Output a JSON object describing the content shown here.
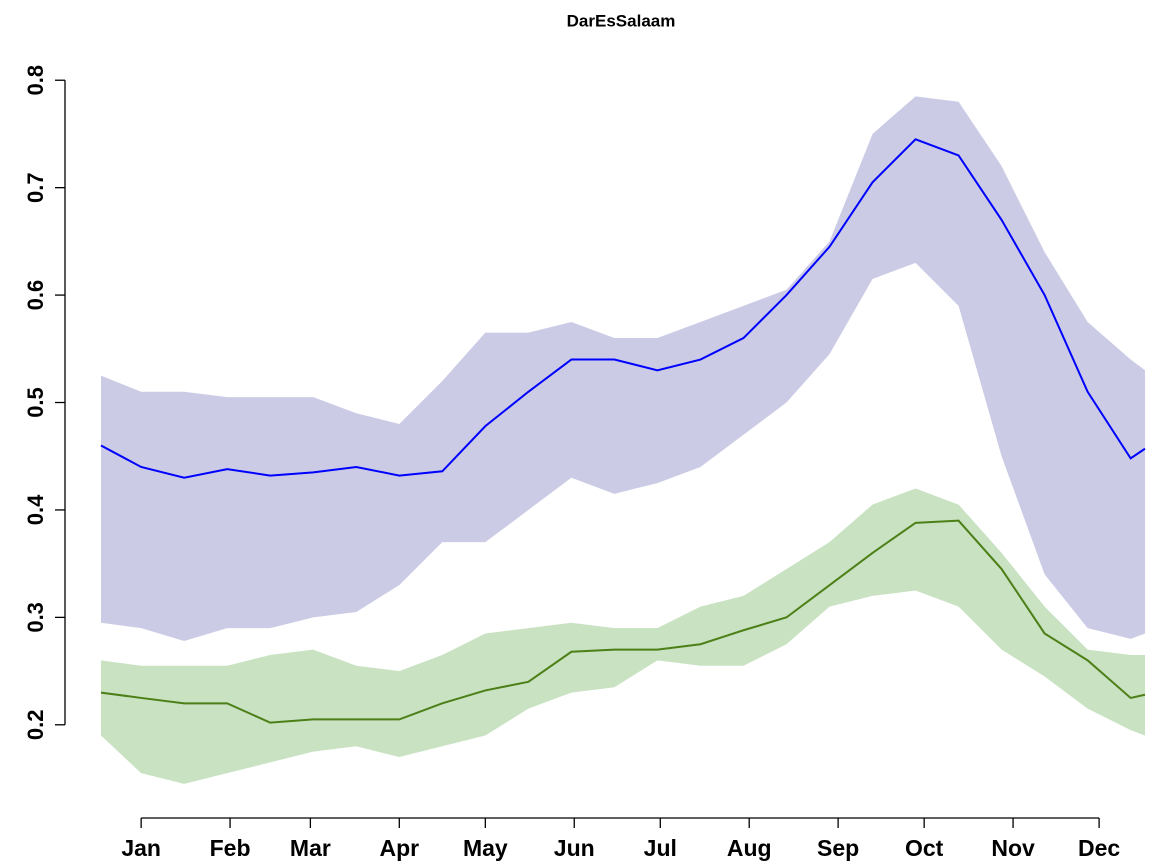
{
  "chart_data": {
    "type": "line",
    "title": "DarEsSalaam",
    "x": [
      1,
      15,
      30,
      45,
      60,
      75,
      90,
      105,
      120,
      135,
      150,
      165,
      180,
      195,
      210,
      225,
      240,
      255,
      270,
      285,
      300,
      315,
      330,
      345,
      360,
      365
    ],
    "xlim": [
      1,
      365
    ],
    "xticks": [
      {
        "value": 15,
        "label": "Jan"
      },
      {
        "value": 46,
        "label": "Feb"
      },
      {
        "value": 74,
        "label": "Mar"
      },
      {
        "value": 105,
        "label": "Apr"
      },
      {
        "value": 135,
        "label": "May"
      },
      {
        "value": 166,
        "label": "Jun"
      },
      {
        "value": 196,
        "label": "Jul"
      },
      {
        "value": 227,
        "label": "Aug"
      },
      {
        "value": 258,
        "label": "Sep"
      },
      {
        "value": 288,
        "label": "Oct"
      },
      {
        "value": 319,
        "label": "Nov"
      },
      {
        "value": 349,
        "label": "Dec"
      }
    ],
    "ylim": [
      0.13,
      0.83
    ],
    "yticks": [
      0.2,
      0.3,
      0.4,
      0.5,
      0.6,
      0.7,
      0.8
    ],
    "series": [
      {
        "color": "#0000ff",
        "band_color": "#cbcbe6",
        "values": [
          0.46,
          0.44,
          0.43,
          0.438,
          0.432,
          0.435,
          0.44,
          0.432,
          0.436,
          0.478,
          0.51,
          0.54,
          0.54,
          0.53,
          0.54,
          0.56,
          0.6,
          0.645,
          0.705,
          0.745,
          0.73,
          0.67,
          0.6,
          0.51,
          0.448,
          0.457
        ],
        "upper": [
          0.525,
          0.51,
          0.51,
          0.505,
          0.505,
          0.505,
          0.49,
          0.48,
          0.52,
          0.565,
          0.565,
          0.575,
          0.56,
          0.56,
          0.575,
          0.59,
          0.605,
          0.65,
          0.75,
          0.785,
          0.78,
          0.72,
          0.64,
          0.575,
          0.54,
          0.53
        ],
        "lower": [
          0.295,
          0.29,
          0.278,
          0.29,
          0.29,
          0.3,
          0.305,
          0.33,
          0.37,
          0.37,
          0.4,
          0.43,
          0.415,
          0.425,
          0.44,
          0.47,
          0.5,
          0.545,
          0.615,
          0.63,
          0.59,
          0.45,
          0.34,
          0.29,
          0.28,
          0.285
        ]
      },
      {
        "color": "#4d7f17",
        "band_color": "#c8e2c2",
        "values": [
          0.23,
          0.225,
          0.22,
          0.22,
          0.202,
          0.205,
          0.205,
          0.205,
          0.22,
          0.232,
          0.24,
          0.268,
          0.27,
          0.27,
          0.275,
          0.288,
          0.3,
          0.33,
          0.36,
          0.388,
          0.39,
          0.345,
          0.285,
          0.26,
          0.225,
          0.228
        ],
        "upper": [
          0.26,
          0.255,
          0.255,
          0.255,
          0.265,
          0.27,
          0.255,
          0.25,
          0.265,
          0.285,
          0.29,
          0.295,
          0.29,
          0.29,
          0.31,
          0.32,
          0.345,
          0.37,
          0.405,
          0.42,
          0.405,
          0.36,
          0.31,
          0.27,
          0.265,
          0.265
        ],
        "lower": [
          0.19,
          0.155,
          0.145,
          0.155,
          0.165,
          0.175,
          0.18,
          0.17,
          0.18,
          0.19,
          0.215,
          0.23,
          0.235,
          0.26,
          0.255,
          0.255,
          0.275,
          0.31,
          0.32,
          0.325,
          0.31,
          0.27,
          0.245,
          0.215,
          0.195,
          0.19
        ]
      }
    ]
  }
}
